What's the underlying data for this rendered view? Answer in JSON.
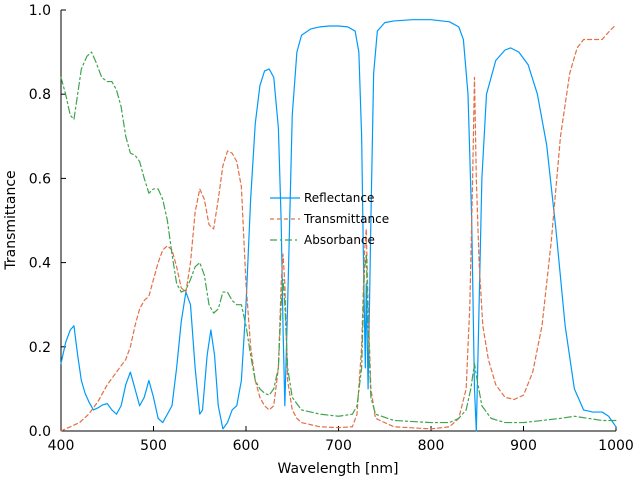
{
  "chart_data": {
    "type": "line",
    "title": "",
    "xlabel": "Wavelength [nm]",
    "ylabel": "Transmittance",
    "xlim": [
      400,
      1000
    ],
    "ylim": [
      0,
      1
    ],
    "x_ticks": [
      400,
      500,
      600,
      700,
      800,
      900,
      1000
    ],
    "y_ticks": [
      0.0,
      0.2,
      0.4,
      0.6,
      0.8,
      1.0
    ],
    "x_tick_labels": [
      "400",
      "500",
      "600",
      "700",
      "800",
      "900",
      "1000"
    ],
    "y_tick_labels": [
      "0.0",
      "0.2",
      "0.4",
      "0.6",
      "0.8",
      "1.0"
    ],
    "grid": false,
    "legend_position": "center",
    "series": [
      {
        "name": "Reflectance",
        "color": "#009AFA",
        "style": "solid",
        "points": [
          [
            400,
            0.16
          ],
          [
            405,
            0.21
          ],
          [
            410,
            0.24
          ],
          [
            414,
            0.25
          ],
          [
            418,
            0.18
          ],
          [
            422,
            0.12
          ],
          [
            426,
            0.09
          ],
          [
            430,
            0.07
          ],
          [
            435,
            0.05
          ],
          [
            440,
            0.055
          ],
          [
            445,
            0.062
          ],
          [
            450,
            0.065
          ],
          [
            455,
            0.05
          ],
          [
            460,
            0.04
          ],
          [
            465,
            0.06
          ],
          [
            470,
            0.11
          ],
          [
            475,
            0.14
          ],
          [
            480,
            0.1
          ],
          [
            485,
            0.06
          ],
          [
            490,
            0.08
          ],
          [
            495,
            0.12
          ],
          [
            500,
            0.08
          ],
          [
            505,
            0.03
          ],
          [
            510,
            0.02
          ],
          [
            520,
            0.06
          ],
          [
            525,
            0.15
          ],
          [
            530,
            0.26
          ],
          [
            535,
            0.33
          ],
          [
            540,
            0.3
          ],
          [
            545,
            0.15
          ],
          [
            550,
            0.04
          ],
          [
            553,
            0.05
          ],
          [
            558,
            0.18
          ],
          [
            562,
            0.24
          ],
          [
            566,
            0.18
          ],
          [
            570,
            0.06
          ],
          [
            575,
            0.005
          ],
          [
            580,
            0.02
          ],
          [
            585,
            0.05
          ],
          [
            590,
            0.06
          ],
          [
            595,
            0.12
          ],
          [
            600,
            0.3
          ],
          [
            605,
            0.55
          ],
          [
            610,
            0.73
          ],
          [
            615,
            0.82
          ],
          [
            620,
            0.855
          ],
          [
            625,
            0.86
          ],
          [
            630,
            0.84
          ],
          [
            635,
            0.72
          ],
          [
            638,
            0.5
          ],
          [
            640,
            0.25
          ],
          [
            642,
            0.06
          ],
          [
            645,
            0.3
          ],
          [
            650,
            0.75
          ],
          [
            655,
            0.9
          ],
          [
            660,
            0.94
          ],
          [
            670,
            0.955
          ],
          [
            680,
            0.96
          ],
          [
            690,
            0.962
          ],
          [
            700,
            0.962
          ],
          [
            710,
            0.96
          ],
          [
            718,
            0.95
          ],
          [
            722,
            0.9
          ],
          [
            725,
            0.7
          ],
          [
            727,
            0.4
          ],
          [
            729,
            0.15
          ],
          [
            730,
            0.35
          ],
          [
            732,
            0.1
          ],
          [
            735,
            0.5
          ],
          [
            738,
            0.85
          ],
          [
            742,
            0.95
          ],
          [
            750,
            0.97
          ],
          [
            760,
            0.974
          ],
          [
            780,
            0.977
          ],
          [
            800,
            0.977
          ],
          [
            820,
            0.972
          ],
          [
            830,
            0.96
          ],
          [
            835,
            0.93
          ],
          [
            840,
            0.8
          ],
          [
            844,
            0.5
          ],
          [
            847,
            0.1
          ],
          [
            849,
            0.0
          ],
          [
            851,
            0.2
          ],
          [
            855,
            0.6
          ],
          [
            860,
            0.8
          ],
          [
            870,
            0.88
          ],
          [
            880,
            0.905
          ],
          [
            886,
            0.91
          ],
          [
            895,
            0.9
          ],
          [
            905,
            0.87
          ],
          [
            915,
            0.8
          ],
          [
            925,
            0.68
          ],
          [
            935,
            0.48
          ],
          [
            945,
            0.25
          ],
          [
            955,
            0.1
          ],
          [
            965,
            0.05
          ],
          [
            975,
            0.045
          ],
          [
            985,
            0.045
          ],
          [
            992,
            0.035
          ],
          [
            1000,
            0.01
          ]
        ]
      },
      {
        "name": "Transmittance",
        "color": "#E26F46",
        "style": "dashed",
        "points": [
          [
            400,
            0.0
          ],
          [
            410,
            0.01
          ],
          [
            420,
            0.02
          ],
          [
            430,
            0.04
          ],
          [
            440,
            0.07
          ],
          [
            450,
            0.11
          ],
          [
            460,
            0.14
          ],
          [
            470,
            0.17
          ],
          [
            475,
            0.2
          ],
          [
            480,
            0.25
          ],
          [
            485,
            0.29
          ],
          [
            490,
            0.31
          ],
          [
            495,
            0.32
          ],
          [
            500,
            0.36
          ],
          [
            505,
            0.4
          ],
          [
            510,
            0.43
          ],
          [
            515,
            0.44
          ],
          [
            520,
            0.43
          ],
          [
            525,
            0.39
          ],
          [
            530,
            0.34
          ],
          [
            535,
            0.33
          ],
          [
            540,
            0.4
          ],
          [
            545,
            0.52
          ],
          [
            550,
            0.575
          ],
          [
            555,
            0.55
          ],
          [
            560,
            0.49
          ],
          [
            565,
            0.48
          ],
          [
            570,
            0.55
          ],
          [
            575,
            0.63
          ],
          [
            580,
            0.665
          ],
          [
            585,
            0.66
          ],
          [
            590,
            0.64
          ],
          [
            595,
            0.58
          ],
          [
            600,
            0.35
          ],
          [
            605,
            0.2
          ],
          [
            610,
            0.12
          ],
          [
            615,
            0.08
          ],
          [
            620,
            0.06
          ],
          [
            625,
            0.05
          ],
          [
            630,
            0.06
          ],
          [
            635,
            0.15
          ],
          [
            638,
            0.35
          ],
          [
            640,
            0.42
          ],
          [
            642,
            0.35
          ],
          [
            645,
            0.12
          ],
          [
            650,
            0.05
          ],
          [
            655,
            0.03
          ],
          [
            660,
            0.02
          ],
          [
            680,
            0.01
          ],
          [
            700,
            0.008
          ],
          [
            715,
            0.01
          ],
          [
            720,
            0.04
          ],
          [
            725,
            0.2
          ],
          [
            728,
            0.42
          ],
          [
            730,
            0.48
          ],
          [
            732,
            0.3
          ],
          [
            735,
            0.1
          ],
          [
            740,
            0.03
          ],
          [
            760,
            0.01
          ],
          [
            800,
            0.005
          ],
          [
            820,
            0.01
          ],
          [
            830,
            0.03
          ],
          [
            838,
            0.1
          ],
          [
            842,
            0.3
          ],
          [
            845,
            0.6
          ],
          [
            847,
            0.84
          ],
          [
            849,
            0.6
          ],
          [
            852,
            0.4
          ],
          [
            856,
            0.25
          ],
          [
            862,
            0.17
          ],
          [
            870,
            0.11
          ],
          [
            880,
            0.08
          ],
          [
            890,
            0.075
          ],
          [
            900,
            0.085
          ],
          [
            910,
            0.14
          ],
          [
            920,
            0.25
          ],
          [
            930,
            0.45
          ],
          [
            940,
            0.7
          ],
          [
            950,
            0.85
          ],
          [
            958,
            0.91
          ],
          [
            965,
            0.93
          ],
          [
            975,
            0.93
          ],
          [
            985,
            0.93
          ],
          [
            993,
            0.95
          ],
          [
            1000,
            0.965
          ]
        ]
      },
      {
        "name": "Absorbance",
        "color": "#3EA44E",
        "style": "dashdot",
        "points": [
          [
            400,
            0.84
          ],
          [
            405,
            0.8
          ],
          [
            410,
            0.75
          ],
          [
            414,
            0.74
          ],
          [
            418,
            0.8
          ],
          [
            422,
            0.86
          ],
          [
            428,
            0.89
          ],
          [
            433,
            0.9
          ],
          [
            438,
            0.875
          ],
          [
            444,
            0.84
          ],
          [
            450,
            0.83
          ],
          [
            455,
            0.83
          ],
          [
            460,
            0.81
          ],
          [
            465,
            0.77
          ],
          [
            470,
            0.7
          ],
          [
            475,
            0.66
          ],
          [
            480,
            0.655
          ],
          [
            485,
            0.64
          ],
          [
            490,
            0.6
          ],
          [
            495,
            0.565
          ],
          [
            500,
            0.575
          ],
          [
            505,
            0.575
          ],
          [
            510,
            0.55
          ],
          [
            515,
            0.5
          ],
          [
            520,
            0.42
          ],
          [
            525,
            0.35
          ],
          [
            530,
            0.33
          ],
          [
            535,
            0.335
          ],
          [
            540,
            0.36
          ],
          [
            545,
            0.39
          ],
          [
            550,
            0.4
          ],
          [
            555,
            0.37
          ],
          [
            560,
            0.3
          ],
          [
            565,
            0.28
          ],
          [
            570,
            0.29
          ],
          [
            575,
            0.33
          ],
          [
            580,
            0.33
          ],
          [
            585,
            0.31
          ],
          [
            590,
            0.3
          ],
          [
            595,
            0.3
          ],
          [
            600,
            0.25
          ],
          [
            605,
            0.18
          ],
          [
            610,
            0.12
          ],
          [
            615,
            0.1
          ],
          [
            620,
            0.09
          ],
          [
            625,
            0.085
          ],
          [
            630,
            0.1
          ],
          [
            635,
            0.15
          ],
          [
            638,
            0.3
          ],
          [
            640,
            0.36
          ],
          [
            642,
            0.3
          ],
          [
            645,
            0.15
          ],
          [
            650,
            0.08
          ],
          [
            660,
            0.05
          ],
          [
            680,
            0.04
          ],
          [
            700,
            0.035
          ],
          [
            715,
            0.04
          ],
          [
            720,
            0.06
          ],
          [
            725,
            0.15
          ],
          [
            728,
            0.38
          ],
          [
            730,
            0.42
          ],
          [
            732,
            0.25
          ],
          [
            735,
            0.08
          ],
          [
            740,
            0.04
          ],
          [
            760,
            0.025
          ],
          [
            800,
            0.02
          ],
          [
            820,
            0.02
          ],
          [
            830,
            0.03
          ],
          [
            838,
            0.05
          ],
          [
            843,
            0.1
          ],
          [
            847,
            0.16
          ],
          [
            850,
            0.12
          ],
          [
            855,
            0.06
          ],
          [
            865,
            0.03
          ],
          [
            880,
            0.02
          ],
          [
            900,
            0.02
          ],
          [
            920,
            0.025
          ],
          [
            940,
            0.03
          ],
          [
            955,
            0.035
          ],
          [
            970,
            0.03
          ],
          [
            985,
            0.025
          ],
          [
            1000,
            0.025
          ]
        ]
      }
    ]
  }
}
